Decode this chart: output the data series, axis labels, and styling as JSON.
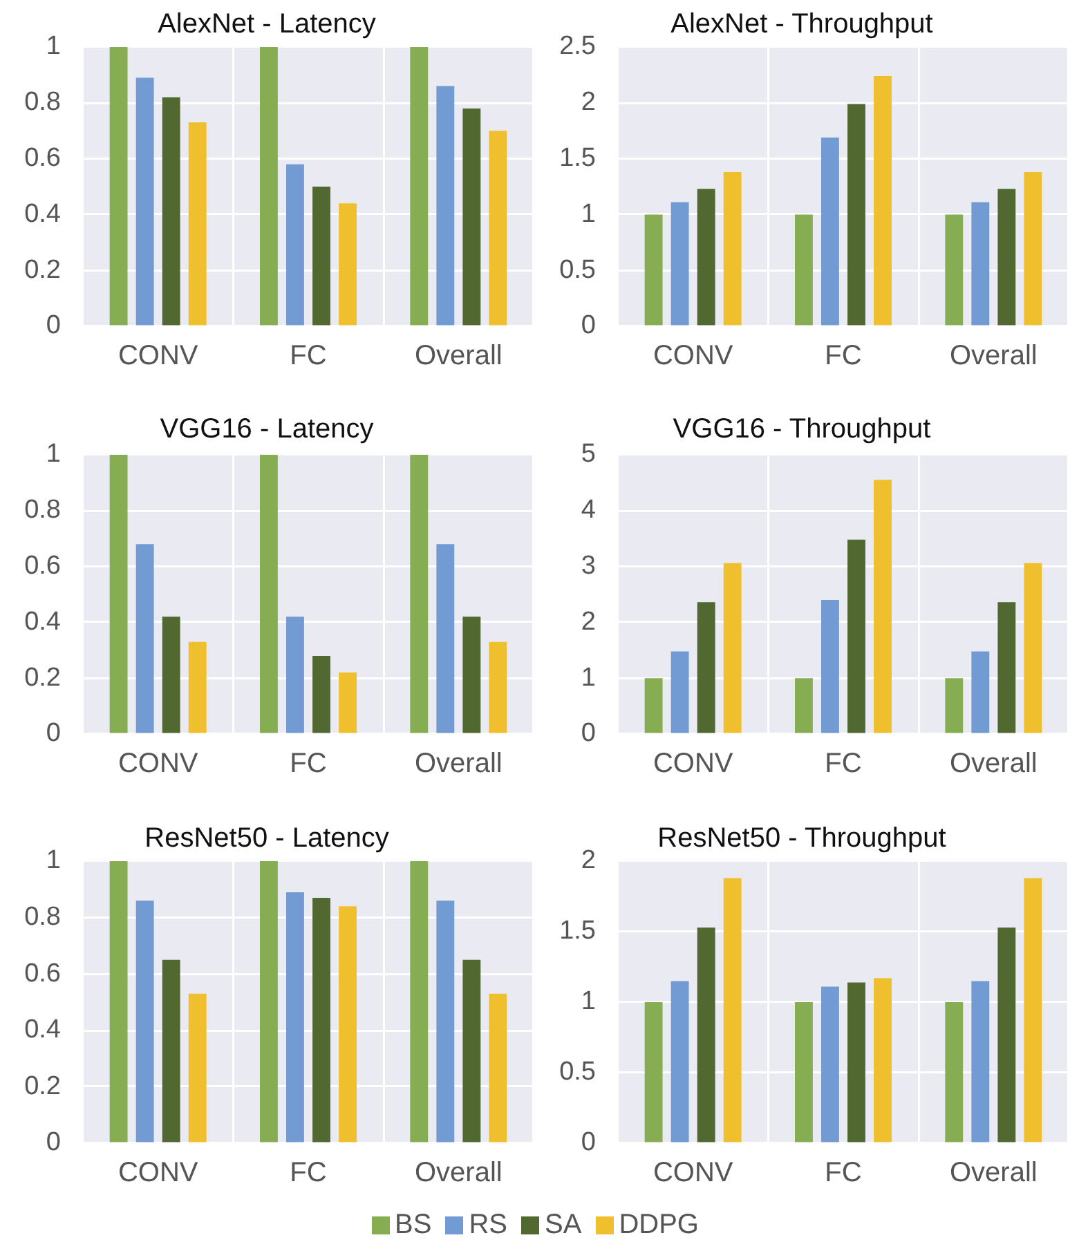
{
  "chart_data": [
    {
      "type": "bar",
      "title": "AlexNet - Latency",
      "categories": [
        "CONV",
        "FC",
        "Overall"
      ],
      "series": [
        {
          "name": "BS",
          "color": "#86ad51",
          "values": [
            1,
            1,
            1
          ]
        },
        {
          "name": "RS",
          "color": "#729bd3",
          "values": [
            0.89,
            0.58,
            0.86
          ]
        },
        {
          "name": "SA",
          "color": "#516831",
          "values": [
            0.82,
            0.5,
            0.78
          ]
        },
        {
          "name": "DDPG",
          "color": "#f0bf2d",
          "values": [
            0.73,
            0.44,
            0.7
          ]
        }
      ],
      "ylim": [
        0,
        1
      ],
      "yticks": [
        0,
        0.2,
        0.4,
        0.6,
        0.8,
        1
      ],
      "grid": true,
      "legend": "bottom"
    },
    {
      "type": "bar",
      "title": "AlexNet - Throughput",
      "categories": [
        "CONV",
        "FC",
        "Overall"
      ],
      "series": [
        {
          "name": "BS",
          "color": "#86ad51",
          "values": [
            1,
            1,
            1
          ]
        },
        {
          "name": "RS",
          "color": "#729bd3",
          "values": [
            1.11,
            1.69,
            1.11
          ]
        },
        {
          "name": "SA",
          "color": "#516831",
          "values": [
            1.23,
            1.99,
            1.23
          ]
        },
        {
          "name": "DDPG",
          "color": "#f0bf2d",
          "values": [
            1.38,
            2.24,
            1.38
          ]
        }
      ],
      "ylim": [
        0,
        2.5
      ],
      "yticks": [
        0,
        0.5,
        1,
        1.5,
        2,
        2.5
      ],
      "grid": true
    },
    {
      "type": "bar",
      "title": "VGG16 - Latency",
      "categories": [
        "CONV",
        "FC",
        "Overall"
      ],
      "series": [
        {
          "name": "BS",
          "color": "#86ad51",
          "values": [
            1,
            1,
            1
          ]
        },
        {
          "name": "RS",
          "color": "#729bd3",
          "values": [
            0.68,
            0.42,
            0.68
          ]
        },
        {
          "name": "SA",
          "color": "#516831",
          "values": [
            0.42,
            0.28,
            0.42
          ]
        },
        {
          "name": "DDPG",
          "color": "#f0bf2d",
          "values": [
            0.33,
            0.22,
            0.33
          ]
        }
      ],
      "ylim": [
        0,
        1
      ],
      "yticks": [
        0,
        0.2,
        0.4,
        0.6,
        0.8,
        1
      ],
      "grid": true
    },
    {
      "type": "bar",
      "title": "VGG16 - Throughput",
      "categories": [
        "CONV",
        "FC",
        "Overall"
      ],
      "series": [
        {
          "name": "BS",
          "color": "#86ad51",
          "values": [
            1,
            1,
            1
          ]
        },
        {
          "name": "RS",
          "color": "#729bd3",
          "values": [
            1.48,
            2.4,
            1.48
          ]
        },
        {
          "name": "SA",
          "color": "#516831",
          "values": [
            2.36,
            3.48,
            2.36
          ]
        },
        {
          "name": "DDPG",
          "color": "#f0bf2d",
          "values": [
            3.06,
            4.55,
            3.06
          ]
        }
      ],
      "ylim": [
        0,
        5
      ],
      "yticks": [
        0,
        1,
        2,
        3,
        4,
        5
      ],
      "grid": true
    },
    {
      "type": "bar",
      "title": "ResNet50 - Latency",
      "categories": [
        "CONV",
        "FC",
        "Overall"
      ],
      "series": [
        {
          "name": "BS",
          "color": "#86ad51",
          "values": [
            1,
            1,
            1
          ]
        },
        {
          "name": "RS",
          "color": "#729bd3",
          "values": [
            0.86,
            0.89,
            0.86
          ]
        },
        {
          "name": "SA",
          "color": "#516831",
          "values": [
            0.65,
            0.87,
            0.65
          ]
        },
        {
          "name": "DDPG",
          "color": "#f0bf2d",
          "values": [
            0.53,
            0.84,
            0.53
          ]
        }
      ],
      "ylim": [
        0,
        1
      ],
      "yticks": [
        0,
        0.2,
        0.4,
        0.6,
        0.8,
        1
      ],
      "grid": true
    },
    {
      "type": "bar",
      "title": "ResNet50 - Throughput",
      "categories": [
        "CONV",
        "FC",
        "Overall"
      ],
      "series": [
        {
          "name": "BS",
          "color": "#86ad51",
          "values": [
            1,
            1,
            1
          ]
        },
        {
          "name": "RS",
          "color": "#729bd3",
          "values": [
            1.15,
            1.11,
            1.15
          ]
        },
        {
          "name": "SA",
          "color": "#516831",
          "values": [
            1.53,
            1.14,
            1.53
          ]
        },
        {
          "name": "DDPG",
          "color": "#f0bf2d",
          "values": [
            1.88,
            1.17,
            1.88
          ]
        }
      ],
      "ylim": [
        0,
        2
      ],
      "yticks": [
        0,
        0.5,
        1,
        1.5,
        2
      ],
      "grid": true
    }
  ]
}
